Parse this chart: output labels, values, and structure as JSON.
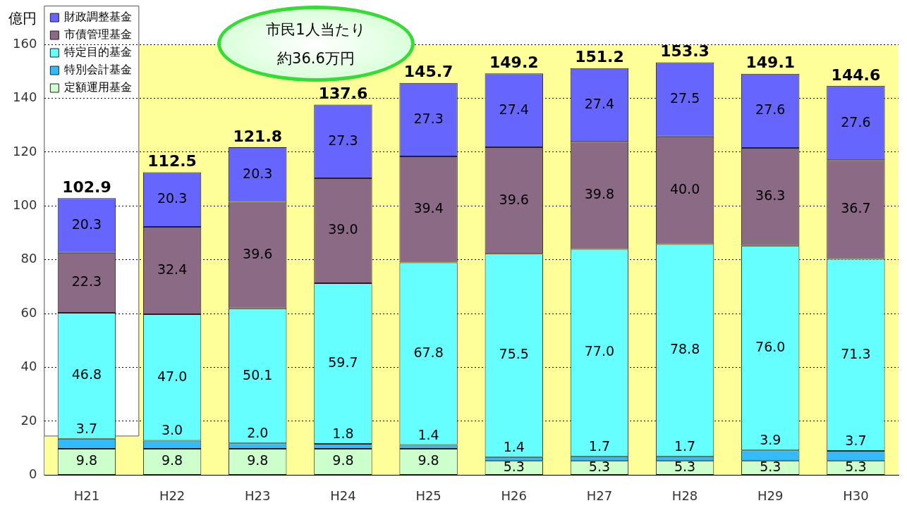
{
  "chart_data": {
    "type": "bar",
    "stacked": true,
    "ylabel": "億円",
    "categories": [
      "H21",
      "H22",
      "H23",
      "H24",
      "H25",
      "H26",
      "H27",
      "H28",
      "H29",
      "H30"
    ],
    "series": [
      {
        "name": "定額運用基金",
        "color": "#ccffcc",
        "values": [
          9.8,
          9.8,
          9.8,
          9.8,
          9.8,
          5.3,
          5.3,
          5.3,
          5.3,
          5.3
        ],
        "value_labels": [
          "9.8",
          "9.8",
          "9.8",
          "9.8",
          "9.8",
          "5.3",
          "5.3",
          "5.3",
          "5.3",
          "5.3"
        ]
      },
      {
        "name": "特別会計基金",
        "color": "#33bbff",
        "values": [
          3.7,
          3.0,
          2.0,
          1.8,
          1.4,
          1.4,
          1.7,
          1.7,
          3.9,
          3.7
        ],
        "value_labels": [
          "3.7",
          "3.0",
          "2.0",
          "1.8",
          "1.4",
          "1.4",
          "1.7",
          "1.7",
          "3.9",
          "3.7"
        ]
      },
      {
        "name": "特定目的基金",
        "color": "#66ffff",
        "values": [
          46.8,
          47.0,
          50.1,
          59.7,
          67.8,
          75.5,
          77.0,
          78.8,
          76.0,
          71.3
        ],
        "value_labels": [
          "46.8",
          "47.0",
          "50.1",
          "59.7",
          "67.8",
          "75.5",
          "77.0",
          "78.8",
          "76.0",
          "71.3"
        ]
      },
      {
        "name": "市債管理基金",
        "color": "#8a6a85",
        "values": [
          22.3,
          32.4,
          39.6,
          39.0,
          39.4,
          39.6,
          39.8,
          40.0,
          36.3,
          36.7
        ],
        "value_labels": [
          "22.3",
          "32.4",
          "39.6",
          "39.0",
          "39.4",
          "39.6",
          "39.8",
          "40.0",
          "36.3",
          "36.7"
        ]
      },
      {
        "name": "財政調整基金",
        "color": "#6666ff",
        "values": [
          20.3,
          20.3,
          20.3,
          27.3,
          27.3,
          27.4,
          27.4,
          27.5,
          27.6,
          27.6
        ],
        "value_labels": [
          "20.3",
          "20.3",
          "20.3",
          "27.3",
          "27.3",
          "27.4",
          "27.4",
          "27.5",
          "27.6",
          "27.6"
        ]
      }
    ],
    "totals": [
      "102.9",
      "112.5",
      "121.8",
      "137.6",
      "145.7",
      "149.2",
      "151.2",
      "153.3",
      "149.1",
      "144.6"
    ],
    "ylim": [
      0,
      160
    ],
    "yticks": [
      0,
      20,
      40,
      60,
      80,
      100,
      120,
      140,
      160
    ],
    "grid": "y",
    "legend": "top left",
    "annotations": [
      "市民1人当たり",
      "約36.6万円"
    ]
  }
}
